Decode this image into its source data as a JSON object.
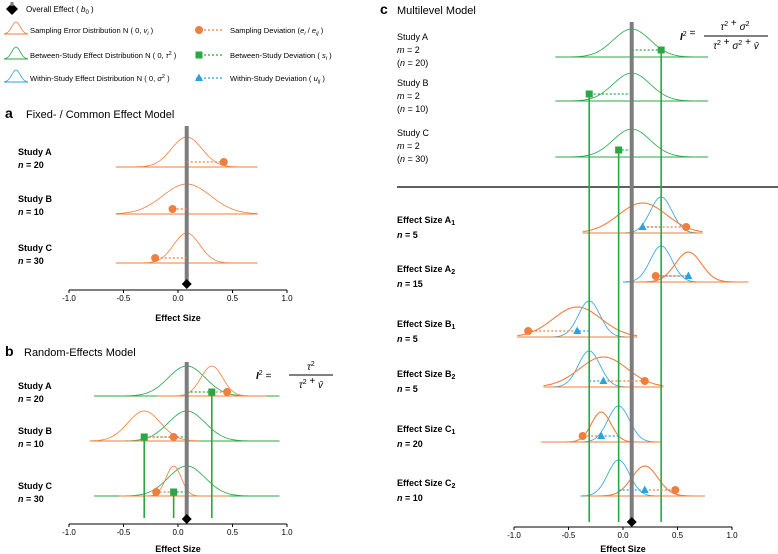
{
  "legend": {
    "overall": {
      "text": "Overall Effect",
      "sym": "b",
      "sub": "0"
    },
    "items": [
      {
        "kind": "dist",
        "color": "orange",
        "text": "Sampling Error Distribution N ( 0, ",
        "param": "v",
        "sub": "i",
        "close": " )"
      },
      {
        "kind": "dist",
        "color": "green",
        "text": "Between-Study Effect Distribution N ( 0, ",
        "param": "τ",
        "sup": "2",
        "close": " )"
      },
      {
        "kind": "dist",
        "color": "blue",
        "text": "Within-Study Effect Distribution N ( 0, ",
        "param": "σ",
        "sup": "2",
        "close": " )"
      },
      {
        "kind": "dev",
        "color": "orange",
        "marker": "circle",
        "text": "Sampling Deviation (",
        "param": "e",
        "sub": "i",
        "mid": " / ",
        "param2": "e",
        "sub2": "ij",
        "close": " )"
      },
      {
        "kind": "dev",
        "color": "green",
        "marker": "square",
        "text": "Between-Study Deviation ( ",
        "param": "s",
        "sub": "i",
        "close": " )"
      },
      {
        "kind": "dev",
        "color": "blue",
        "marker": "triangle",
        "text": "Within-Study Deviation ( ",
        "param": "u",
        "sub": "ij",
        "close": " )"
      }
    ]
  },
  "colors": {
    "orange": "#f07e3e",
    "green": "#29a745",
    "blue": "#2aa3dc",
    "overall": "#7d7d7d",
    "axis": "#000000"
  },
  "axis_ticks": [
    "-1.0",
    "-0.5",
    "0.0",
    "0.5",
    "1.0"
  ],
  "axis_label": "Effect Size",
  "chart_data": [
    {
      "panel": "a",
      "title": "Fixed- / Common Effect Model",
      "type": "forest-distribution",
      "xlim": [
        -1.0,
        1.0
      ],
      "overall_effect": 0.08,
      "rows": [
        {
          "label": "Study A",
          "n_label": "n",
          "n": "20",
          "mean": 0.08,
          "sd": 0.14,
          "observed": 0.42
        },
        {
          "label": "Study B",
          "n_label": "n",
          "n": "10",
          "mean": 0.08,
          "sd": 0.22,
          "observed": -0.05
        },
        {
          "label": "Study C",
          "n_label": "n",
          "n": "30",
          "mean": 0.08,
          "sd": 0.12,
          "observed": -0.21
        }
      ]
    },
    {
      "panel": "b",
      "title": "Random-Effects Model",
      "type": "forest-distribution",
      "xlim": [
        -1.0,
        1.0
      ],
      "overall_effect": 0.08,
      "formula": {
        "lhs": "I",
        "num": "τ",
        "den1": "τ",
        "den2": "v̄"
      },
      "rows": [
        {
          "label": "Study A",
          "n_label": "n",
          "n": "20",
          "true_effect": 0.31,
          "tau": 0.17,
          "sd": 0.1,
          "observed": 0.45
        },
        {
          "label": "Study B",
          "n_label": "n",
          "n": "10",
          "true_effect": -0.31,
          "tau": 0.17,
          "sd": 0.15,
          "observed": -0.04
        },
        {
          "label": "Study C",
          "n_label": "n",
          "n": "30",
          "true_effect": -0.04,
          "tau": 0.17,
          "sd": 0.07,
          "observed": -0.2
        }
      ]
    },
    {
      "panel": "c",
      "title": "Multilevel Model",
      "type": "forest-distribution",
      "xlim": [
        -1.0,
        1.0
      ],
      "overall_effect": 0.08,
      "formula": {
        "lhs": "I",
        "num1": "τ",
        "num2": "σ",
        "den1": "τ",
        "den2": "σ",
        "den3": "v̄"
      },
      "studies": [
        {
          "label": "Study A",
          "m_label": "m",
          "m": "2",
          "n_label": "n",
          "n": "20",
          "study_effect": 0.35,
          "tau": 0.17
        },
        {
          "label": "Study B",
          "m_label": "m",
          "m": "2",
          "n_label": "n",
          "n": "10",
          "study_effect": -0.31,
          "tau": 0.17
        },
        {
          "label": "Study C",
          "m_label": "m",
          "m": "2",
          "n_label": "n",
          "n": "30",
          "study_effect": -0.04,
          "tau": 0.17
        }
      ],
      "effects": [
        {
          "label": "Effect Size A",
          "idx": "1",
          "n_label": "n",
          "n": "5",
          "study_effect": 0.35,
          "sigma": 0.1,
          "true_effect": 0.18,
          "sd": 0.22,
          "observed": 0.58
        },
        {
          "label": "Effect Size A",
          "idx": "2",
          "n_label": "n",
          "n": "15",
          "study_effect": 0.35,
          "sigma": 0.1,
          "true_effect": 0.6,
          "sd": 0.12,
          "observed": 0.3
        },
        {
          "label": "Effect Size B",
          "idx": "1",
          "n_label": "n",
          "n": "5",
          "study_effect": -0.31,
          "sigma": 0.1,
          "true_effect": -0.42,
          "sd": 0.22,
          "observed": -0.87
        },
        {
          "label": "Effect Size B",
          "idx": "2",
          "n_label": "n",
          "n": "5",
          "study_effect": -0.31,
          "sigma": 0.1,
          "true_effect": -0.18,
          "sd": 0.22,
          "observed": 0.2
        },
        {
          "label": "Effect Size C",
          "idx": "1",
          "n_label": "n",
          "n": "20",
          "study_effect": -0.04,
          "sigma": 0.1,
          "true_effect": -0.2,
          "sd": 0.09,
          "observed": -0.37
        },
        {
          "label": "Effect Size C",
          "idx": "2",
          "n_label": "n",
          "n": "10",
          "study_effect": -0.04,
          "sigma": 0.1,
          "true_effect": 0.2,
          "sd": 0.12,
          "observed": 0.48
        }
      ]
    }
  ]
}
